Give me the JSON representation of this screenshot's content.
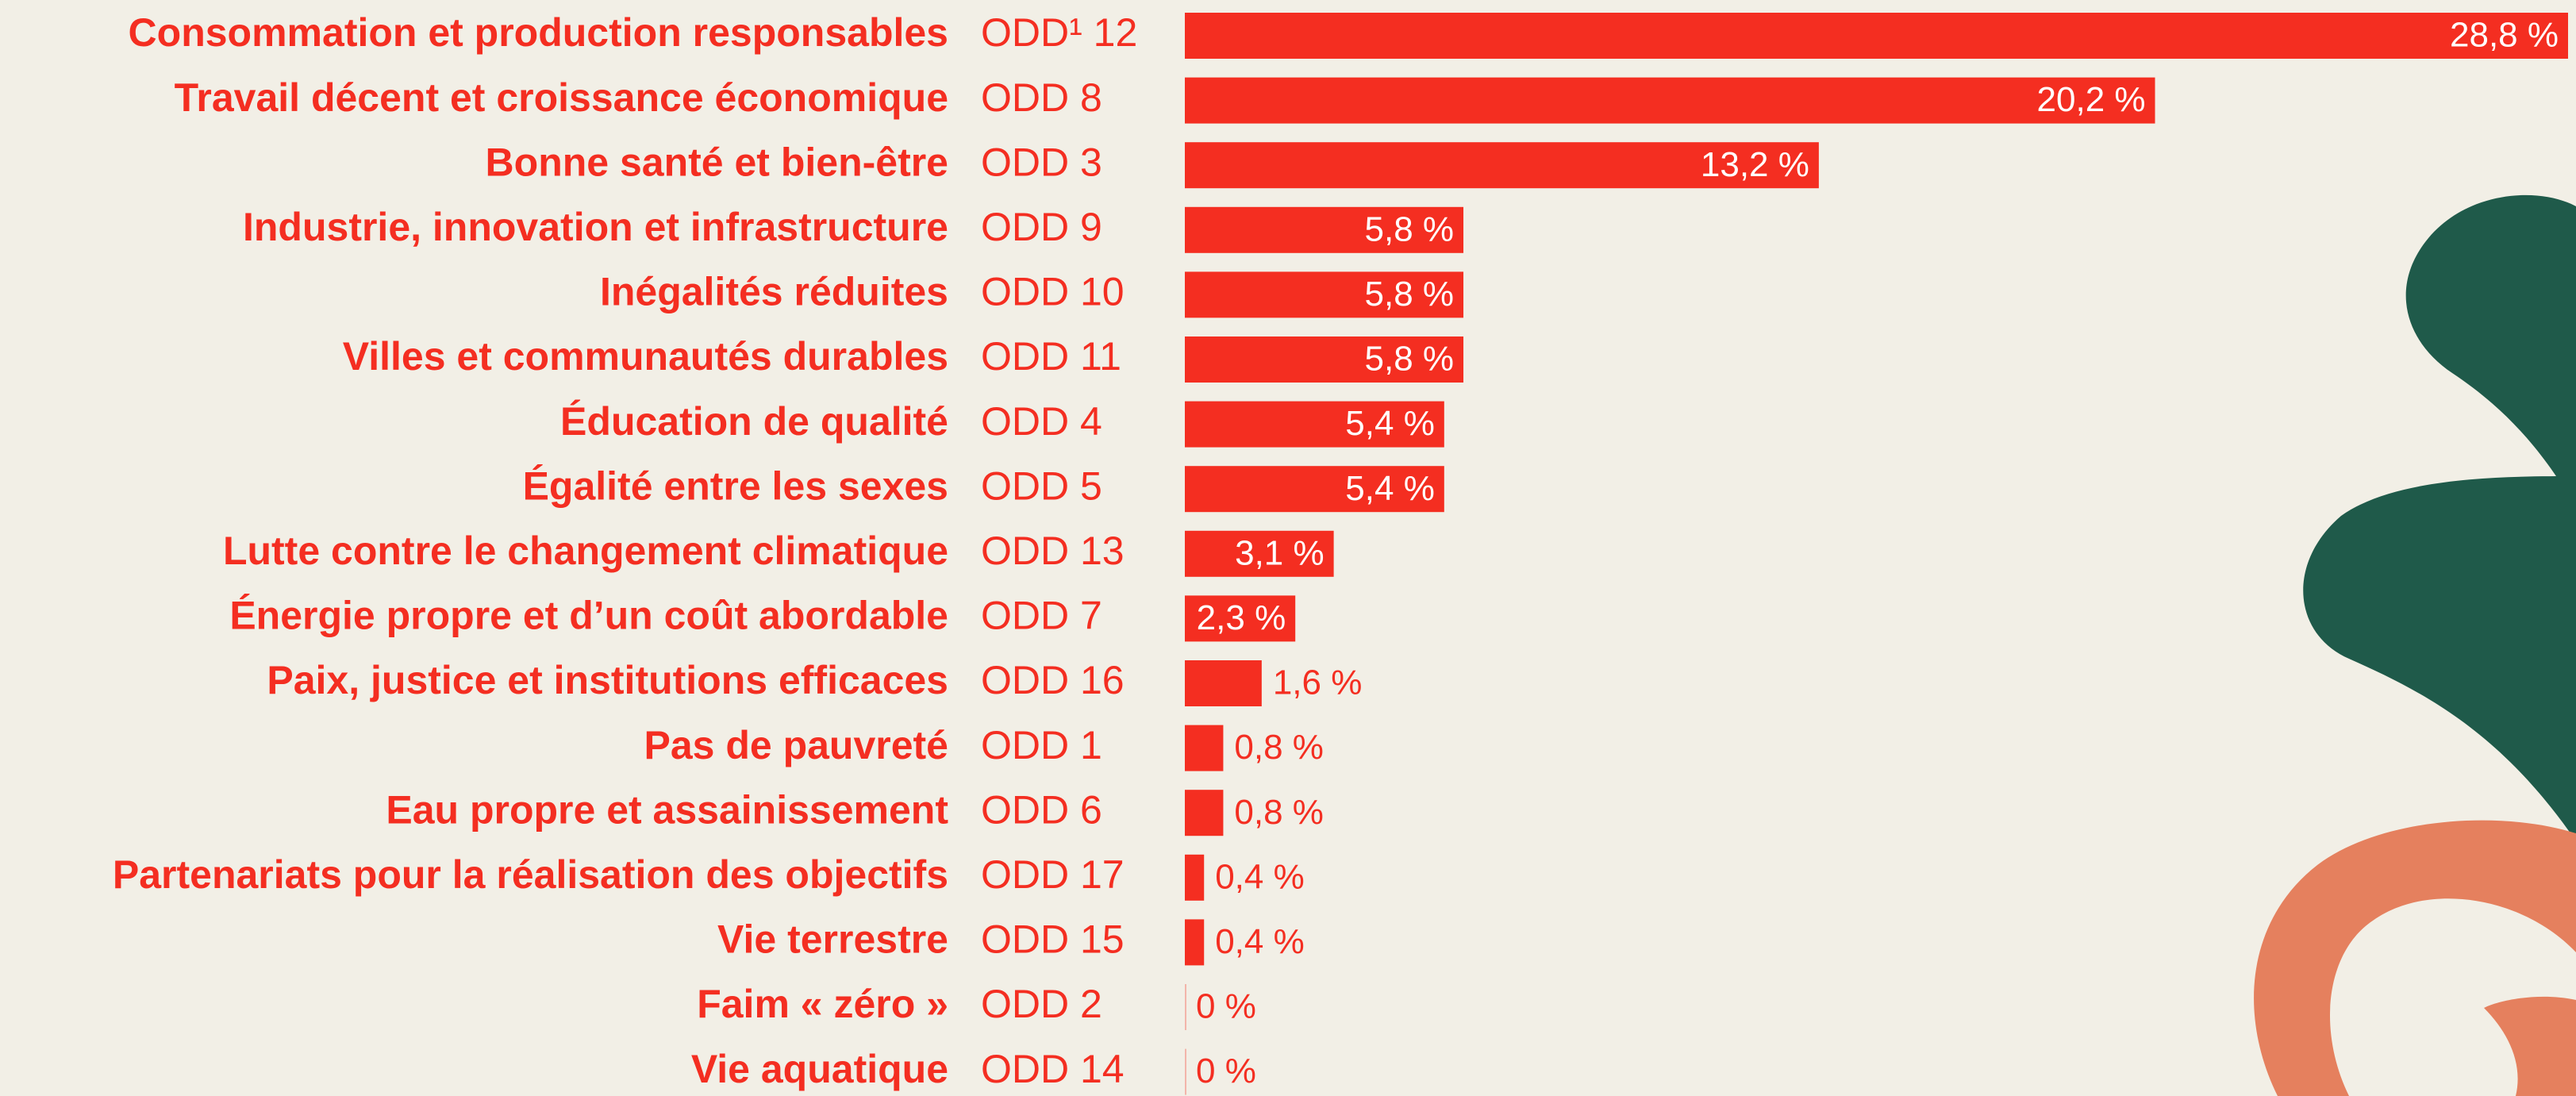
{
  "chart_data": {
    "type": "bar",
    "orientation": "horizontal",
    "color": "#f42e21",
    "categories": [
      "Consommation et production responsables",
      "Travail décent et croissance économique",
      "Bonne santé et bien-être",
      "Industrie, innovation et infrastructure",
      "Inégalités réduites",
      "Villes et communautés durables",
      "Éducation de qualité",
      "Égalité entre les sexes",
      "Lutte contre le changement climatique",
      "Énergie propre et d’un coût abordable",
      "Paix, justice et institutions efficaces",
      "Pas de pauvreté",
      "Eau propre et assainissement",
      "Partenariats pour la réalisation des objectifs",
      "Vie terrestre",
      "Faim « zéro »",
      "Vie aquatique"
    ],
    "codes": [
      "ODD¹ 12",
      "ODD 8",
      "ODD 3",
      "ODD 9",
      "ODD 10",
      "ODD 11",
      "ODD 4",
      "ODD 5",
      "ODD 13",
      "ODD 7",
      "ODD 16",
      "ODD 1",
      "ODD 6",
      "ODD 17",
      "ODD 15",
      "ODD 2",
      "ODD 14"
    ],
    "values": [
      28.8,
      20.2,
      13.2,
      5.8,
      5.8,
      5.8,
      5.4,
      5.4,
      3.1,
      2.3,
      1.6,
      0.8,
      0.8,
      0.4,
      0.4,
      0,
      0
    ],
    "value_labels": [
      "28,8 %",
      "20,2 %",
      "13,2 %",
      "5,8 %",
      "5,8 %",
      "5,8 %",
      "5,4 %",
      "5,4 %",
      "3,1 %",
      "2,3 %",
      "1,6 %",
      "0,8 %",
      "0,8 %",
      "0,4 %",
      "0,4 %",
      "0 %",
      "0 %"
    ]
  }
}
